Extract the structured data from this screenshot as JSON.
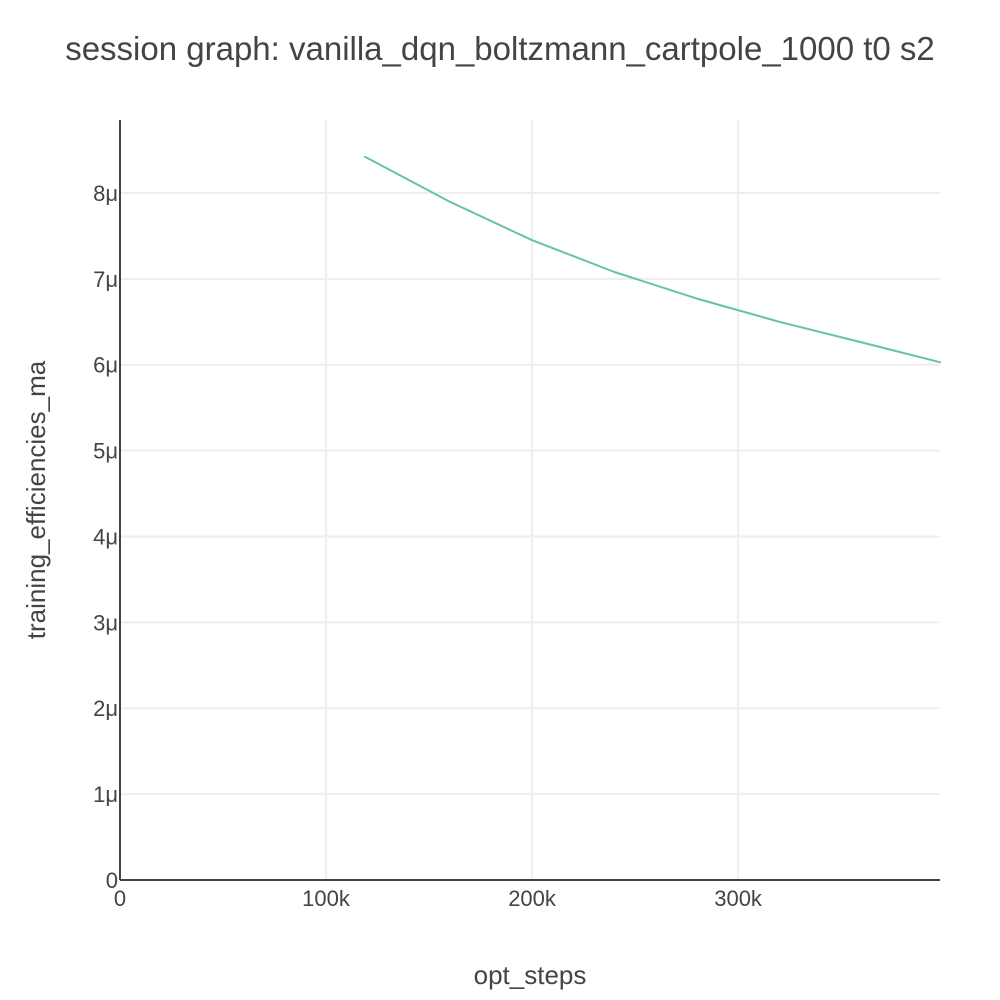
{
  "chart_data": {
    "type": "line",
    "title": "session graph: vanilla_dqn_boltzmann_cartpole_1000 t0 s2",
    "xlabel": "opt_steps",
    "ylabel": "training_efficiencies_ma",
    "xlim": [
      0,
      398000
    ],
    "ylim": [
      0,
      8.85e-06
    ],
    "x_ticks": [
      {
        "value": 0,
        "label": "0"
      },
      {
        "value": 100000,
        "label": "100k"
      },
      {
        "value": 200000,
        "label": "200k"
      },
      {
        "value": 300000,
        "label": "300k"
      }
    ],
    "y_ticks": [
      {
        "value": 0,
        "label": "0"
      },
      {
        "value": 1e-06,
        "label": "1μ"
      },
      {
        "value": 2e-06,
        "label": "2μ"
      },
      {
        "value": 3e-06,
        "label": "3μ"
      },
      {
        "value": 4e-06,
        "label": "4μ"
      },
      {
        "value": 5e-06,
        "label": "5μ"
      },
      {
        "value": 6e-06,
        "label": "6μ"
      },
      {
        "value": 7e-06,
        "label": "7μ"
      },
      {
        "value": 8e-06,
        "label": "8μ"
      }
    ],
    "grid": true,
    "legend": "none",
    "series": [
      {
        "color": "#66c2a5",
        "x": [
          119000,
          160000,
          200000,
          240000,
          280000,
          320000,
          360000,
          398000
        ],
        "y": [
          8.42e-06,
          7.9e-06,
          7.45e-06,
          7.08e-06,
          6.77e-06,
          6.5e-06,
          6.26e-06,
          6.03e-06
        ]
      }
    ]
  }
}
